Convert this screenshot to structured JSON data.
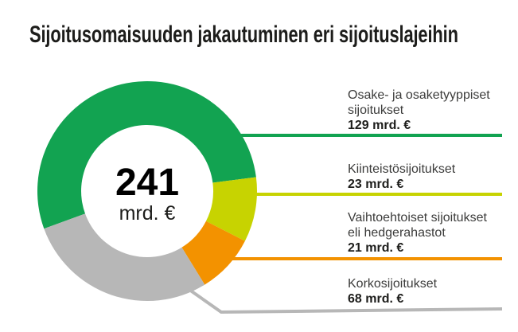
{
  "title": "Sijoitusomaisuuden jakautuminen eri sijoituslajeihin",
  "chart_data": {
    "type": "pie",
    "subtype": "donut",
    "title": "Sijoitusomaisuuden jakautuminen eri sijoituslajeihin",
    "total": 241,
    "unit": "mrd. €",
    "center_label": {
      "value": "241",
      "unit": "mrd. €"
    },
    "start_angle_deg": -110,
    "direction": "clockwise",
    "legend_position": "right",
    "segments": [
      {
        "label": "Osake- ja osaketyyppiset sijoitukset",
        "label_lines": [
          "Osake- ja osaketyyppiset",
          "sijoitukset"
        ],
        "value": 129,
        "amount_label": "129 mrd. €",
        "color": "#12a351"
      },
      {
        "label": "Kiinteistösijoitukset",
        "label_lines": [
          "Kiinteistösijoitukset"
        ],
        "value": 23,
        "amount_label": "23 mrd. €",
        "color": "#c7d301"
      },
      {
        "label": "Vaihtoehtoiset sijoitukset eli hedgerahastot",
        "label_lines": [
          "Vaihtoehtoiset sijoitukset",
          "eli hedgerahastot"
        ],
        "value": 21,
        "amount_label": "21 mrd. €",
        "color": "#f39200"
      },
      {
        "label": "Korkosijoitukset",
        "label_lines": [
          "Korkosijoitukset"
        ],
        "value": 68,
        "amount_label": "68 mrd. €",
        "color": "#b7b7b7"
      }
    ],
    "colors": {
      "title_text": "#1d1d1b",
      "body_text": "#3c3c3b",
      "amount_text": "#1d1d1b",
      "background": "#ffffff"
    }
  }
}
